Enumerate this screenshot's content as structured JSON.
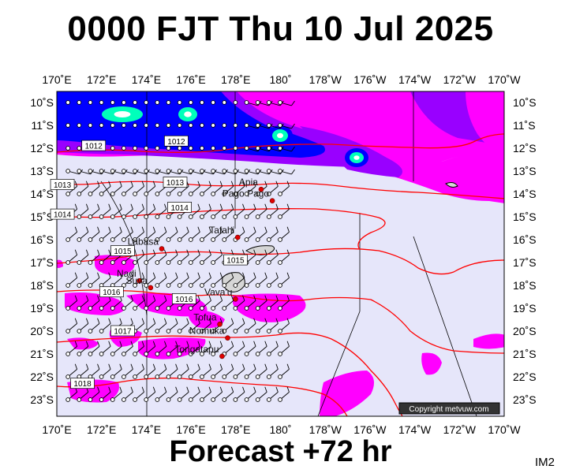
{
  "title": "0000 FJT Thu 10 Jul 2025",
  "subtitle": "Forecast +72 hr",
  "code": "IM2",
  "copyright": "Copyright metvuw.com",
  "longitude_labels": [
    "170˚E",
    "172˚E",
    "174˚E",
    "176˚E",
    "178˚E",
    "180˚",
    "178˚W",
    "176˚W",
    "174˚W",
    "172˚W",
    "170˚W"
  ],
  "latitude_labels": [
    "10˚S",
    "11˚S",
    "12˚S",
    "13˚S",
    "14˚S",
    "15˚S",
    "16˚S",
    "17˚S",
    "18˚S",
    "19˚S",
    "20˚S",
    "21˚S",
    "22˚S",
    "23˚S"
  ],
  "isobar_labels": [
    {
      "text": "1012",
      "lon": 173.3,
      "lat": -11.9
    },
    {
      "text": "1012",
      "lon": 180.7,
      "lat": -11.7
    },
    {
      "text": "1013",
      "lon": 170.5,
      "lat": -13.6
    },
    {
      "text": "1013",
      "lon": 180.6,
      "lat": -13.5
    },
    {
      "text": "1014",
      "lon": 170.5,
      "lat": -14.9
    },
    {
      "text": "1014",
      "lon": 181.0,
      "lat": -14.6
    },
    {
      "text": "1015",
      "lon": 175.9,
      "lat": -16.5
    },
    {
      "text": "1015",
      "lon": 186.0,
      "lat": -16.9
    },
    {
      "text": "1016",
      "lon": 174.9,
      "lat": -18.3
    },
    {
      "text": "1016",
      "lon": 181.4,
      "lat": -18.6
    },
    {
      "text": "1017",
      "lon": 175.9,
      "lat": -20.0
    },
    {
      "text": "1018",
      "lon": 172.3,
      "lat": -22.3
    }
  ],
  "places": [
    {
      "name": "Apia",
      "lon": 188.3,
      "lat": -13.8
    },
    {
      "name": "Pago Pago",
      "lon": 189.3,
      "lat": -14.3
    },
    {
      "name": "Tafahi",
      "lon": 186.2,
      "lat": -15.9
    },
    {
      "name": "Labasa",
      "lon": 179.4,
      "lat": -16.4
    },
    {
      "name": "Nadi",
      "lon": 177.4,
      "lat": -17.8
    },
    {
      "name": "Suva",
      "lon": 178.4,
      "lat": -18.1
    },
    {
      "name": "Vava'u",
      "lon": 186.0,
      "lat": -18.6
    },
    {
      "name": "Tofua",
      "lon": 184.6,
      "lat": -19.7
    },
    {
      "name": "Nomuka",
      "lon": 185.3,
      "lat": -20.3
    },
    {
      "name": "Tongatapu",
      "lon": 184.8,
      "lat": -21.1
    }
  ],
  "colors": {
    "background": "#e6e6fa",
    "isobar": "#ff0000",
    "rain_light": "#ff00ff",
    "rain_moderate": "#9900ff",
    "rain_heavy": "#0000ff",
    "rain_extreme": "#00ffbb",
    "land": "#d6d6d6"
  }
}
